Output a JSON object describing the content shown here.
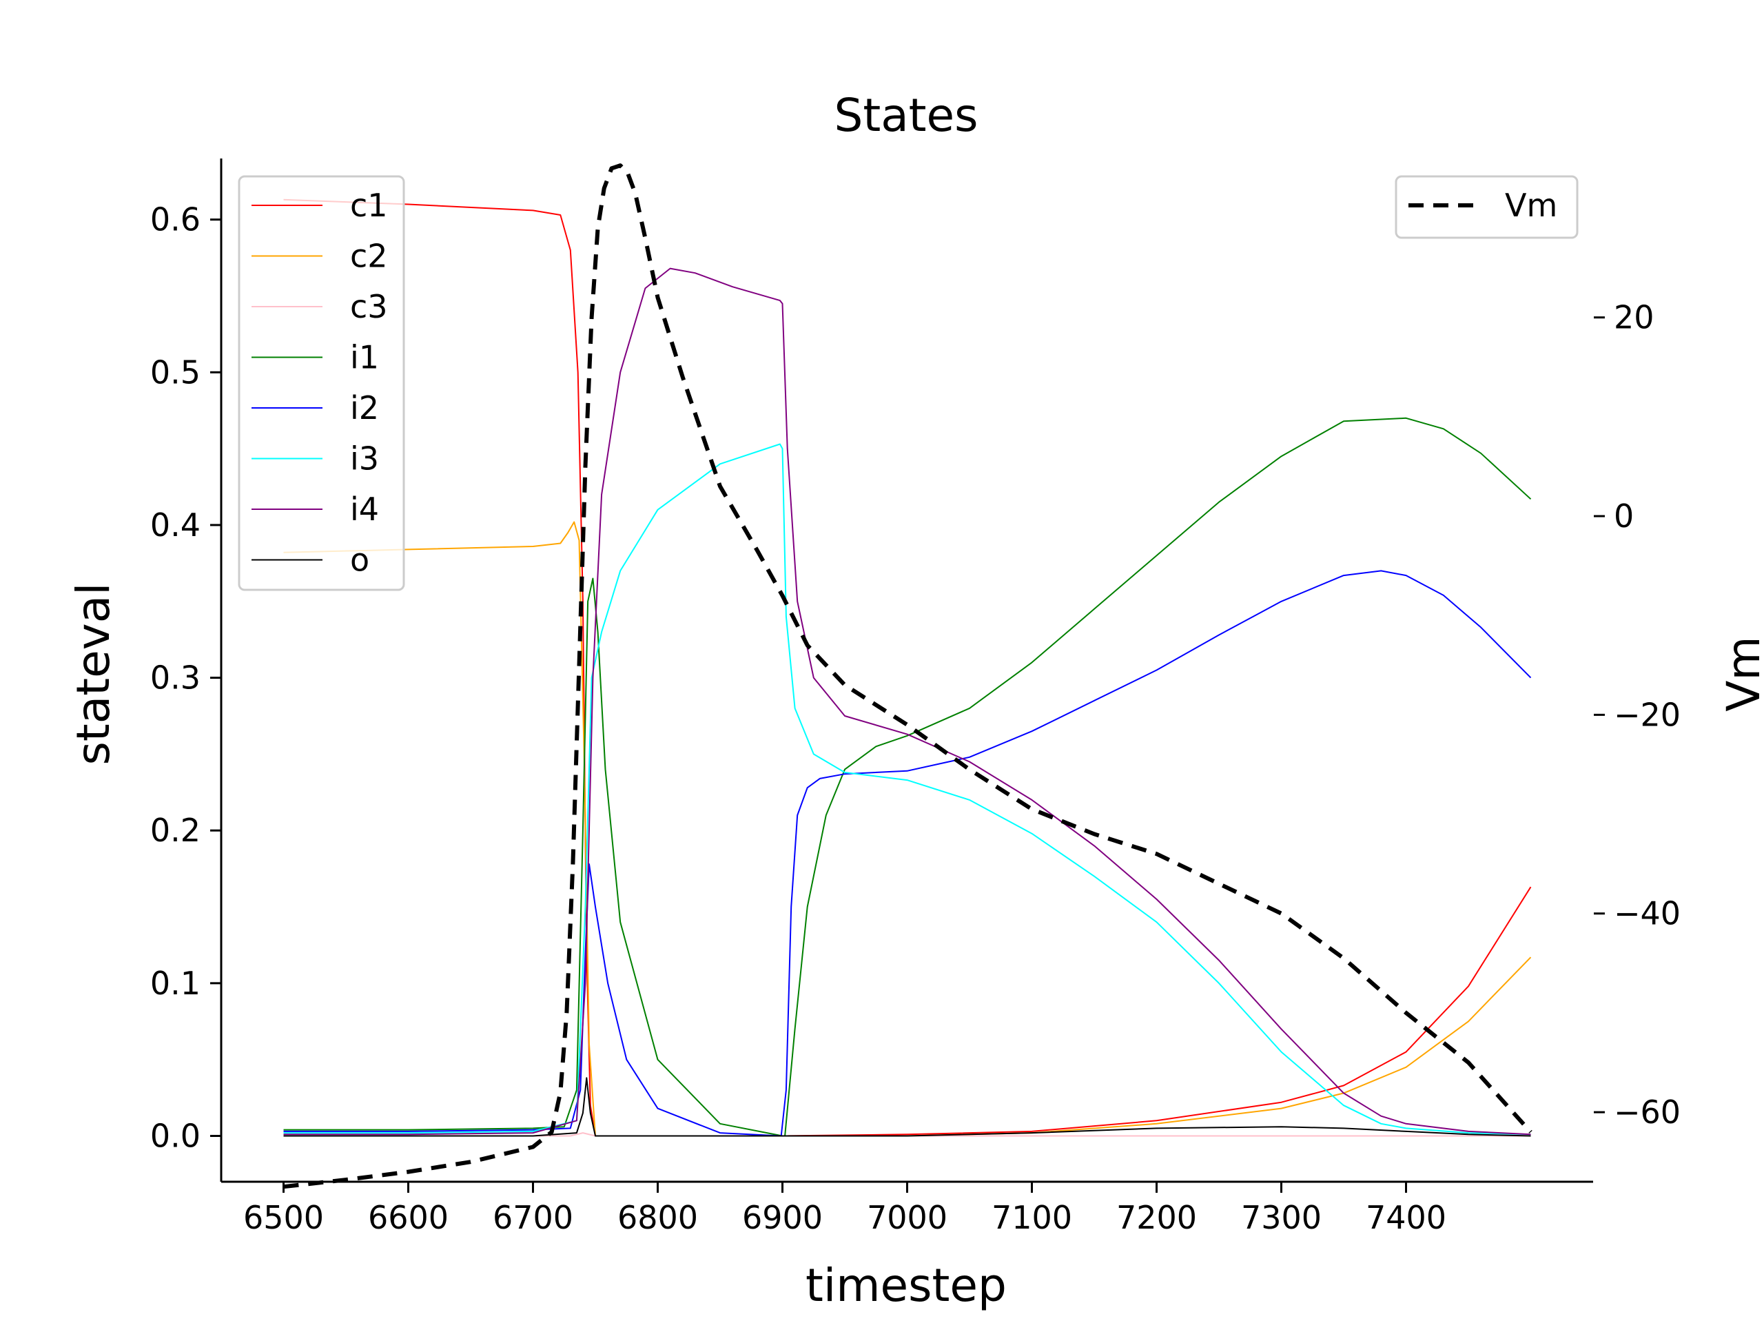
{
  "chart_data": {
    "type": "line",
    "title": "States",
    "xlabel": "timestep",
    "ylabel": "stateval",
    "y2label": "Vm",
    "xlim": [
      6450,
      7550
    ],
    "ylim": [
      -0.03,
      0.64
    ],
    "y2lim": [
      -67,
      36
    ],
    "xticks": [
      6500,
      6600,
      6700,
      6800,
      6900,
      7000,
      7100,
      7200,
      7300,
      7400
    ],
    "xtick_labels": [
      "6500",
      "6600",
      "6700",
      "6800",
      "6900",
      "7000",
      "7100",
      "7200",
      "7300",
      "7400"
    ],
    "yticks": [
      0.0,
      0.1,
      0.2,
      0.3,
      0.4,
      0.5,
      0.6
    ],
    "ytick_labels": [
      "0.0",
      "0.1",
      "0.2",
      "0.3",
      "0.4",
      "0.5",
      "0.6"
    ],
    "y2ticks": [
      20,
      0,
      -20,
      -40,
      -60
    ],
    "y2tick_labels": [
      "20",
      "0",
      "−20",
      "−40",
      "−60"
    ],
    "grid": false,
    "legend_left_placement": "top-left",
    "legend_right_placement": "top-right",
    "series": [
      {
        "name": "c1",
        "color": "#ff0000",
        "axis": "left",
        "width": 2,
        "dash": "",
        "x": [
          6500,
          6600,
          6700,
          6722,
          6730,
          6736,
          6740,
          6743,
          6746,
          6750,
          6800,
          6900,
          7000,
          7100,
          7200,
          7300,
          7350,
          7400,
          7450,
          7500
        ],
        "y": [
          0.613,
          0.61,
          0.606,
          0.603,
          0.58,
          0.5,
          0.35,
          0.12,
          0.02,
          0.0,
          0.0,
          0.0,
          0.001,
          0.003,
          0.01,
          0.022,
          0.033,
          0.055,
          0.098,
          0.163
        ]
      },
      {
        "name": "c2",
        "color": "#ffa500",
        "axis": "left",
        "width": 2,
        "dash": "",
        "x": [
          6500,
          6600,
          6700,
          6722,
          6728,
          6733,
          6737,
          6741,
          6745,
          6750,
          6800,
          6900,
          7000,
          7100,
          7200,
          7300,
          7350,
          7400,
          7450,
          7500
        ],
        "y": [
          0.382,
          0.384,
          0.386,
          0.388,
          0.395,
          0.402,
          0.39,
          0.25,
          0.06,
          0.0,
          0.0,
          0.0,
          0.0,
          0.002,
          0.008,
          0.018,
          0.028,
          0.045,
          0.075,
          0.117
        ]
      },
      {
        "name": "c3",
        "color": "#ffc0cb",
        "axis": "left",
        "width": 2,
        "dash": "",
        "x": [
          6500,
          6600,
          6700,
          6730,
          6740,
          6750,
          6800,
          6900,
          7000,
          7100,
          7200,
          7300,
          7400,
          7500
        ],
        "y": [
          0.0,
          0.0,
          0.0,
          0.0,
          0.002,
          0.0,
          0.0,
          0.0,
          0.0,
          0.0,
          0.0,
          0.0,
          0.0,
          0.0
        ]
      },
      {
        "name": "i1",
        "color": "#008000",
        "axis": "left",
        "width": 2,
        "dash": "",
        "x": [
          6500,
          6600,
          6700,
          6725,
          6735,
          6740,
          6744,
          6748,
          6752,
          6758,
          6770,
          6800,
          6850,
          6900,
          6902,
          6910,
          6920,
          6935,
          6950,
          6975,
          7000,
          7050,
          7100,
          7150,
          7200,
          7250,
          7300,
          7350,
          7400,
          7430,
          7460,
          7500
        ],
        "y": [
          0.004,
          0.004,
          0.005,
          0.006,
          0.03,
          0.2,
          0.35,
          0.365,
          0.33,
          0.24,
          0.14,
          0.05,
          0.008,
          0.0,
          0.0,
          0.07,
          0.15,
          0.21,
          0.24,
          0.255,
          0.262,
          0.28,
          0.31,
          0.345,
          0.38,
          0.415,
          0.445,
          0.468,
          0.47,
          0.463,
          0.447,
          0.417
        ]
      },
      {
        "name": "i2",
        "color": "#0000ff",
        "axis": "left",
        "width": 2,
        "dash": "",
        "x": [
          6500,
          6600,
          6700,
          6730,
          6738,
          6742,
          6745,
          6750,
          6760,
          6775,
          6800,
          6850,
          6899,
          6903,
          6907,
          6912,
          6920,
          6930,
          6950,
          7000,
          7050,
          7100,
          7150,
          7200,
          7250,
          7300,
          7350,
          7380,
          7400,
          7430,
          7460,
          7500
        ],
        "y": [
          0.003,
          0.003,
          0.004,
          0.005,
          0.03,
          0.12,
          0.178,
          0.15,
          0.1,
          0.05,
          0.018,
          0.002,
          0.0,
          0.03,
          0.15,
          0.21,
          0.228,
          0.234,
          0.237,
          0.239,
          0.248,
          0.265,
          0.285,
          0.305,
          0.328,
          0.35,
          0.367,
          0.37,
          0.367,
          0.354,
          0.333,
          0.3
        ]
      },
      {
        "name": "i3",
        "color": "#00ffff",
        "axis": "left",
        "width": 2,
        "dash": "",
        "x": [
          6500,
          6600,
          6700,
          6735,
          6742,
          6747,
          6755,
          6770,
          6800,
          6850,
          6898,
          6900,
          6903,
          6910,
          6925,
          6950,
          7000,
          7050,
          7100,
          7150,
          7200,
          7250,
          7300,
          7350,
          7380,
          7400,
          7450,
          7500
        ],
        "y": [
          0.002,
          0.002,
          0.003,
          0.01,
          0.15,
          0.3,
          0.33,
          0.37,
          0.41,
          0.44,
          0.453,
          0.45,
          0.34,
          0.28,
          0.25,
          0.238,
          0.233,
          0.22,
          0.198,
          0.17,
          0.14,
          0.1,
          0.055,
          0.02,
          0.008,
          0.005,
          0.002,
          0.001
        ]
      },
      {
        "name": "i4",
        "color": "#800080",
        "axis": "left",
        "width": 2,
        "dash": "",
        "x": [
          6500,
          6600,
          6700,
          6735,
          6742,
          6748,
          6755,
          6770,
          6790,
          6810,
          6830,
          6860,
          6898,
          6900,
          6904,
          6912,
          6925,
          6950,
          7000,
          7050,
          7100,
          7150,
          7200,
          7250,
          7300,
          7350,
          7380,
          7400,
          7450,
          7500
        ],
        "y": [
          0.001,
          0.001,
          0.002,
          0.01,
          0.1,
          0.3,
          0.42,
          0.5,
          0.555,
          0.568,
          0.565,
          0.556,
          0.547,
          0.545,
          0.45,
          0.35,
          0.3,
          0.275,
          0.263,
          0.245,
          0.22,
          0.19,
          0.155,
          0.115,
          0.07,
          0.028,
          0.013,
          0.008,
          0.003,
          0.001
        ]
      },
      {
        "name": "o",
        "color": "#000000",
        "axis": "left",
        "width": 2,
        "dash": "",
        "x": [
          6500,
          6600,
          6700,
          6735,
          6740,
          6743,
          6746,
          6750,
          6800,
          6900,
          7000,
          7100,
          7200,
          7300,
          7350,
          7400,
          7450,
          7500
        ],
        "y": [
          0.0,
          0.0,
          0.0,
          0.002,
          0.015,
          0.038,
          0.015,
          0.0,
          0.0,
          0.0,
          0.0,
          0.002,
          0.005,
          0.006,
          0.005,
          0.003,
          0.001,
          0.0
        ]
      },
      {
        "name": "Vm",
        "color": "#000000",
        "axis": "right",
        "width": 6,
        "dash": "22,14",
        "x": [
          6500,
          6550,
          6600,
          6650,
          6700,
          6715,
          6722,
          6727,
          6732,
          6737,
          6742,
          6747,
          6752,
          6757,
          6763,
          6770,
          6776,
          6782,
          6790,
          6800,
          6820,
          6850,
          6880,
          6900,
          6920,
          6950,
          7000,
          7050,
          7100,
          7150,
          7200,
          7250,
          7300,
          7350,
          7400,
          7450,
          7500
        ],
        "y": [
          -67.5,
          -66.8,
          -66,
          -65,
          -63.5,
          -62,
          -58,
          -50,
          -35,
          -15,
          5,
          20,
          29,
          33,
          35,
          35.3,
          34.5,
          32.5,
          28,
          22,
          14,
          3,
          -3.5,
          -8,
          -13,
          -17,
          -21,
          -25.5,
          -29.5,
          -32,
          -34,
          -37,
          -40,
          -44.5,
          -50,
          -55,
          -62
        ]
      }
    ]
  }
}
